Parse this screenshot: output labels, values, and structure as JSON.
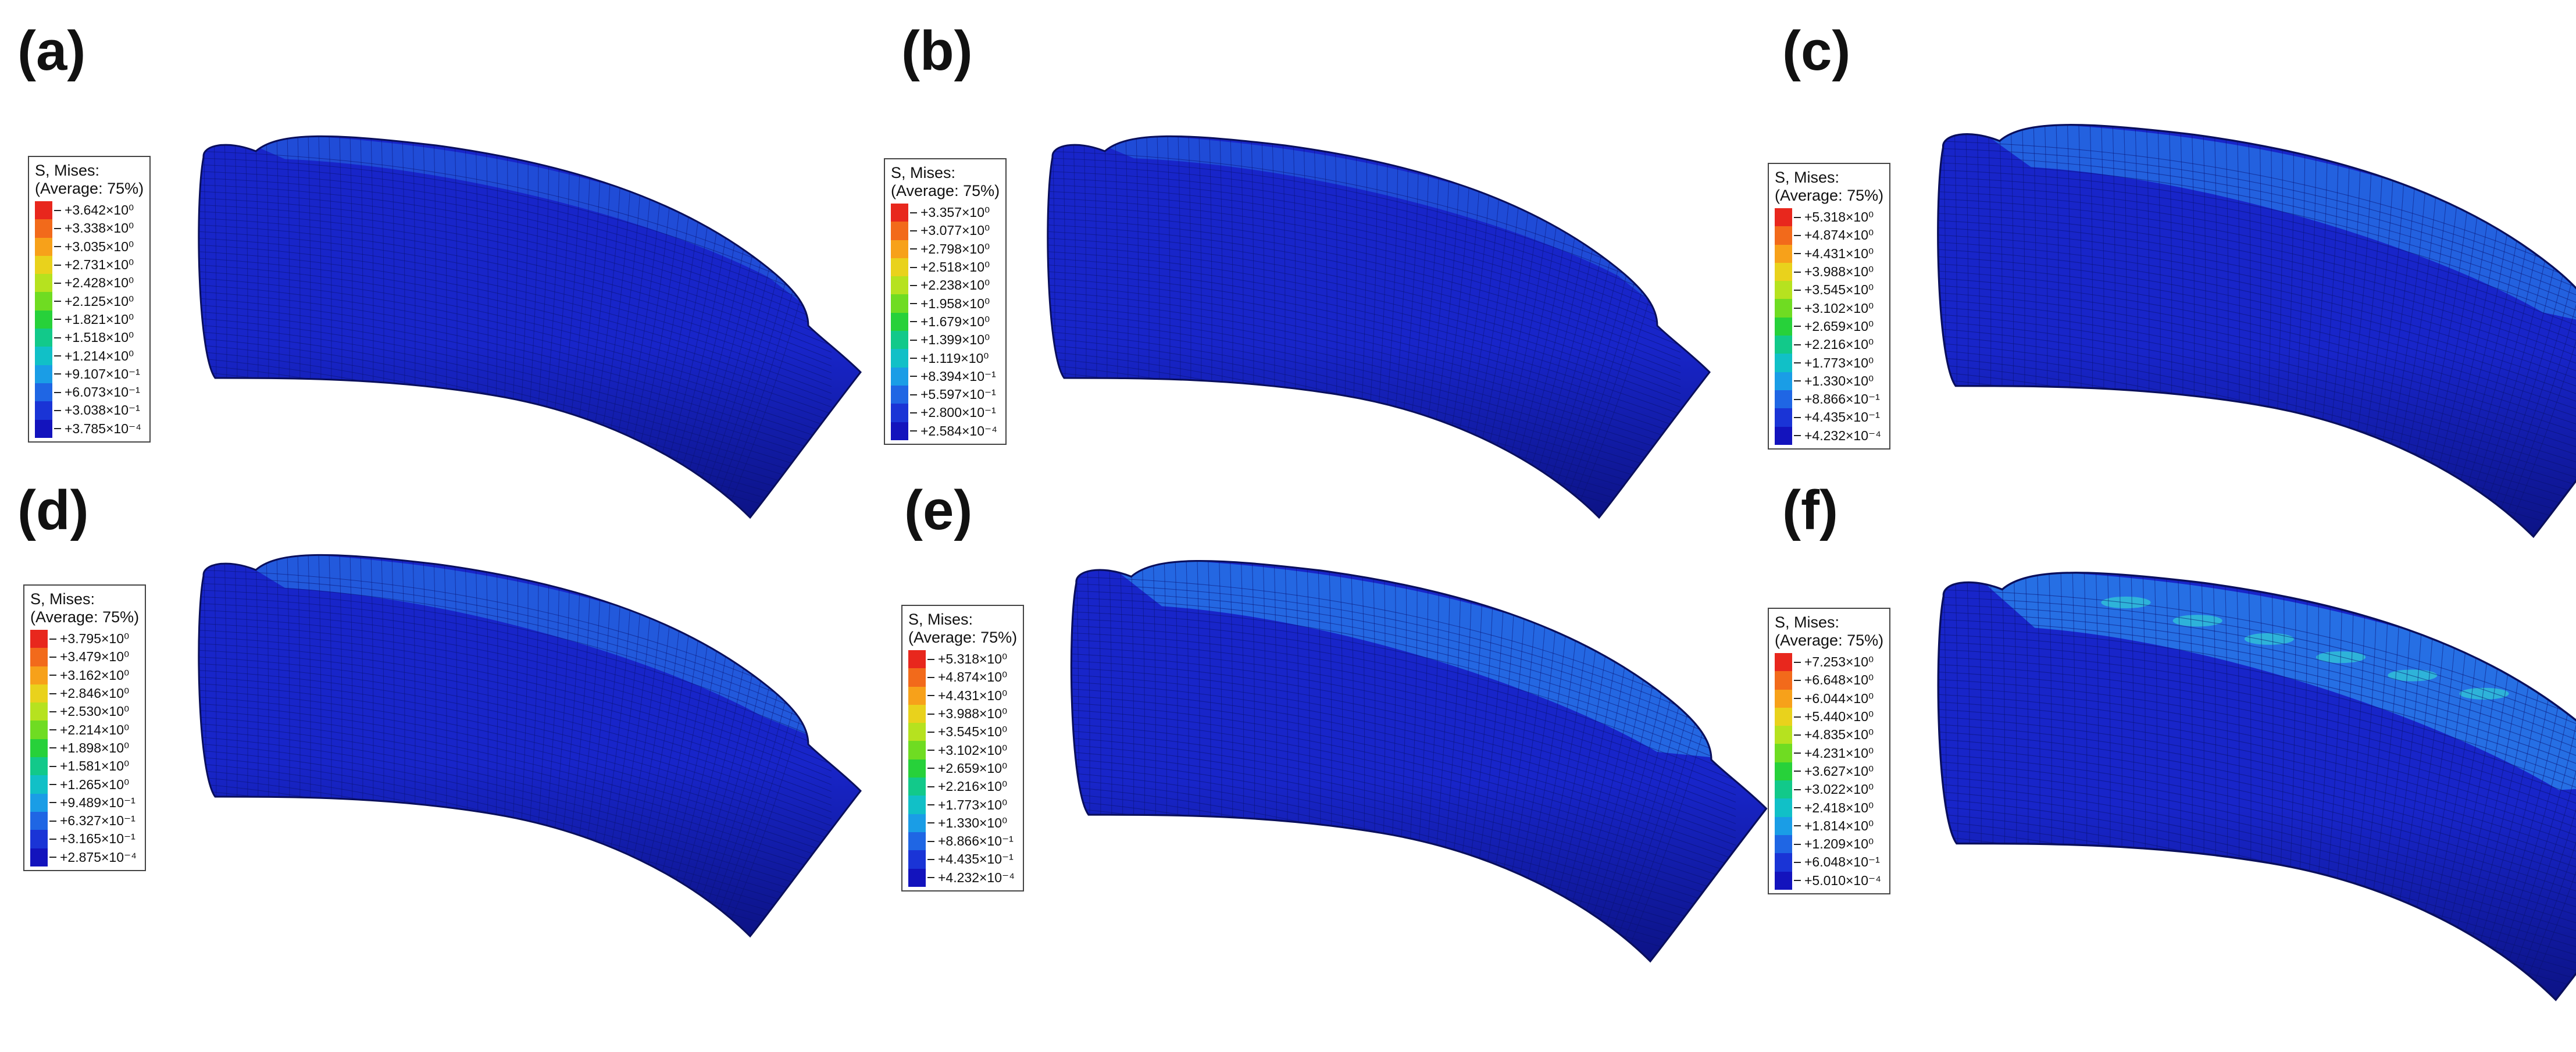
{
  "figure": {
    "legend_title_1": "S, Mises:",
    "legend_title_2": "(Average: 75%)",
    "colors": {
      "band_colors": [
        "#e8271d",
        "#f26a1b",
        "#f7a11a",
        "#e9d21c",
        "#b6e21f",
        "#6fdc22",
        "#27d13a",
        "#12c98a",
        "#11c0c7",
        "#1a9de6",
        "#1f66e4",
        "#1a34d6",
        "#1313bd"
      ],
      "tube_base": "#1825c9",
      "tube_dark": "#0c1386",
      "contact_zone": "#2c8ef0",
      "high_spot": "#31c9d6"
    },
    "panels": [
      {
        "label": "(a)",
        "values": [
          "+3.642×10⁰",
          "+3.338×10⁰",
          "+3.035×10⁰",
          "+2.731×10⁰",
          "+2.428×10⁰",
          "+2.125×10⁰",
          "+1.821×10⁰",
          "+1.518×10⁰",
          "+1.214×10⁰",
          "+9.107×10⁻¹",
          "+6.073×10⁻¹",
          "+3.038×10⁻¹",
          "+3.785×10⁻⁴"
        ],
        "contact_level": 0.05
      },
      {
        "label": "(b)",
        "values": [
          "+3.357×10⁰",
          "+3.077×10⁰",
          "+2.798×10⁰",
          "+2.518×10⁰",
          "+2.238×10⁰",
          "+1.958×10⁰",
          "+1.679×10⁰",
          "+1.399×10⁰",
          "+1.119×10⁰",
          "+8.394×10⁻¹",
          "+5.597×10⁻¹",
          "+2.800×10⁻¹",
          "+2.584×10⁻⁴"
        ],
        "contact_level": 0.03
      },
      {
        "label": "(c)",
        "values": [
          "+5.318×10⁰",
          "+4.874×10⁰",
          "+4.431×10⁰",
          "+3.988×10⁰",
          "+3.545×10⁰",
          "+3.102×10⁰",
          "+2.659×10⁰",
          "+2.216×10⁰",
          "+1.773×10⁰",
          "+1.330×10⁰",
          "+8.866×10⁻¹",
          "+4.435×10⁻¹",
          "+4.232×10⁻⁴"
        ],
        "contact_level": 0.45
      },
      {
        "label": "(d)",
        "values": [
          "+3.795×10⁰",
          "+3.479×10⁰",
          "+3.162×10⁰",
          "+2.846×10⁰",
          "+2.530×10⁰",
          "+2.214×10⁰",
          "+1.898×10⁰",
          "+1.581×10⁰",
          "+1.265×10⁰",
          "+9.489×10⁻¹",
          "+6.327×10⁻¹",
          "+3.165×10⁻¹",
          "+2.875×10⁻⁴"
        ],
        "contact_level": 0.3
      },
      {
        "label": "(e)",
        "values": [
          "+5.318×10⁰",
          "+4.874×10⁰",
          "+4.431×10⁰",
          "+3.988×10⁰",
          "+3.545×10⁰",
          "+3.102×10⁰",
          "+2.659×10⁰",
          "+2.216×10⁰",
          "+1.773×10⁰",
          "+1.330×10⁰",
          "+8.866×10⁻¹",
          "+4.435×10⁻¹",
          "+4.232×10⁻⁴"
        ],
        "contact_level": 0.55
      },
      {
        "label": "(f)",
        "values": [
          "+7.253×10⁰",
          "+6.648×10⁰",
          "+6.044×10⁰",
          "+5.440×10⁰",
          "+4.835×10⁰",
          "+4.231×10⁰",
          "+3.627×10⁰",
          "+3.022×10⁰",
          "+2.418×10⁰",
          "+1.814×10⁰",
          "+1.209×10⁰",
          "+6.048×10⁻¹",
          "+5.010×10⁻⁴"
        ],
        "contact_level": 0.7
      }
    ]
  }
}
